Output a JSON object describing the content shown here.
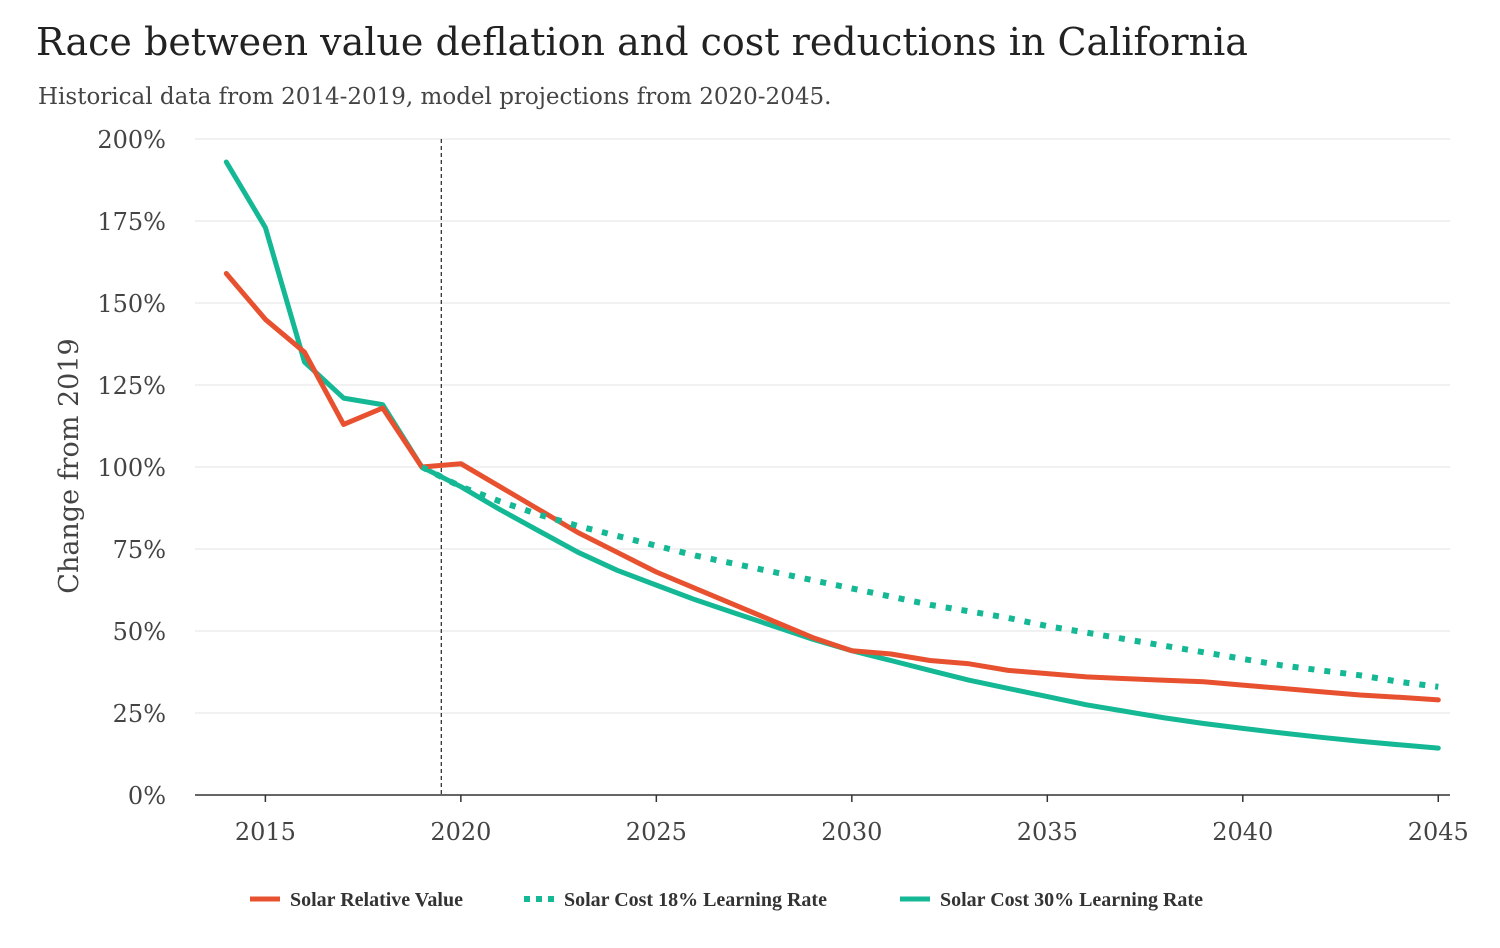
{
  "chart_data": {
    "type": "line",
    "title": "Race between value deflation and cost reductions in California",
    "subtitle": "Historical data from 2014-2019, model projections from 2020-2045.",
    "xlabel": "",
    "ylabel": "Change from 2019",
    "xlim": [
      2013.2,
      2045.3
    ],
    "ylim": [
      0,
      200
    ],
    "x_ticks": [
      2015,
      2020,
      2025,
      2030,
      2035,
      2040,
      2045
    ],
    "y_ticks": [
      0,
      25,
      50,
      75,
      100,
      125,
      150,
      175,
      200
    ],
    "y_tick_labels": [
      "0%",
      "25%",
      "50%",
      "75%",
      "100%",
      "125%",
      "150%",
      "175%",
      "200%"
    ],
    "grid": "horizontal",
    "legend_position": "bottom",
    "annotations": [
      {
        "type": "vertical-dashed-line",
        "x": 2019.5
      }
    ],
    "series": [
      {
        "name": "Solar Relative Value",
        "color": "#e8512f",
        "style": "solid",
        "x": [
          2014,
          2015,
          2016,
          2017,
          2018,
          2019,
          2020,
          2021,
          2022,
          2023,
          2024,
          2025,
          2026,
          2027,
          2028,
          2029,
          2030,
          2031,
          2032,
          2033,
          2034,
          2035,
          2036,
          2037,
          2038,
          2039,
          2040,
          2041,
          2042,
          2043,
          2044,
          2045
        ],
        "values": [
          159,
          145,
          135,
          113,
          118,
          100,
          101,
          94,
          87,
          80,
          74,
          68,
          63,
          58,
          53,
          48,
          44,
          43,
          41,
          40,
          38,
          37,
          36,
          35.5,
          35,
          34.5,
          33.5,
          32.5,
          31.5,
          30.5,
          29.8,
          29
        ]
      },
      {
        "name": "Solar Cost 18% Learning Rate",
        "color": "#14b894",
        "style": "dotted",
        "x": [
          2019,
          2020,
          2021,
          2022,
          2023,
          2024,
          2025,
          2026,
          2027,
          2028,
          2029,
          2030,
          2031,
          2032,
          2033,
          2034,
          2035,
          2036,
          2037,
          2038,
          2039,
          2040,
          2041,
          2042,
          2043,
          2044,
          2045
        ],
        "values": [
          100,
          94,
          89.5,
          85.5,
          82,
          79,
          76,
          73,
          70.5,
          68,
          65.5,
          63,
          60.5,
          58,
          56,
          54,
          51.5,
          49.5,
          47.5,
          45.5,
          43.5,
          41.5,
          39.5,
          38,
          36.5,
          34.5,
          33
        ]
      },
      {
        "name": "Solar Cost 30% Learning Rate",
        "color": "#14b894",
        "style": "solid",
        "x": [
          2014,
          2015,
          2016,
          2017,
          2018,
          2019,
          2020,
          2021,
          2022,
          2023,
          2024,
          2025,
          2026,
          2027,
          2028,
          2029,
          2030,
          2031,
          2032,
          2033,
          2034,
          2035,
          2036,
          2037,
          2038,
          2039,
          2040,
          2041,
          2042,
          2043,
          2044,
          2045
        ],
        "values": [
          193,
          173,
          132,
          121,
          119,
          100,
          94,
          87,
          80.5,
          74,
          68.5,
          64,
          59.5,
          55.5,
          51.5,
          47.5,
          44,
          41,
          38,
          35,
          32.5,
          30,
          27.5,
          25.5,
          23.5,
          21.8,
          20.3,
          18.9,
          17.6,
          16.4,
          15.3,
          14.3
        ]
      }
    ]
  }
}
